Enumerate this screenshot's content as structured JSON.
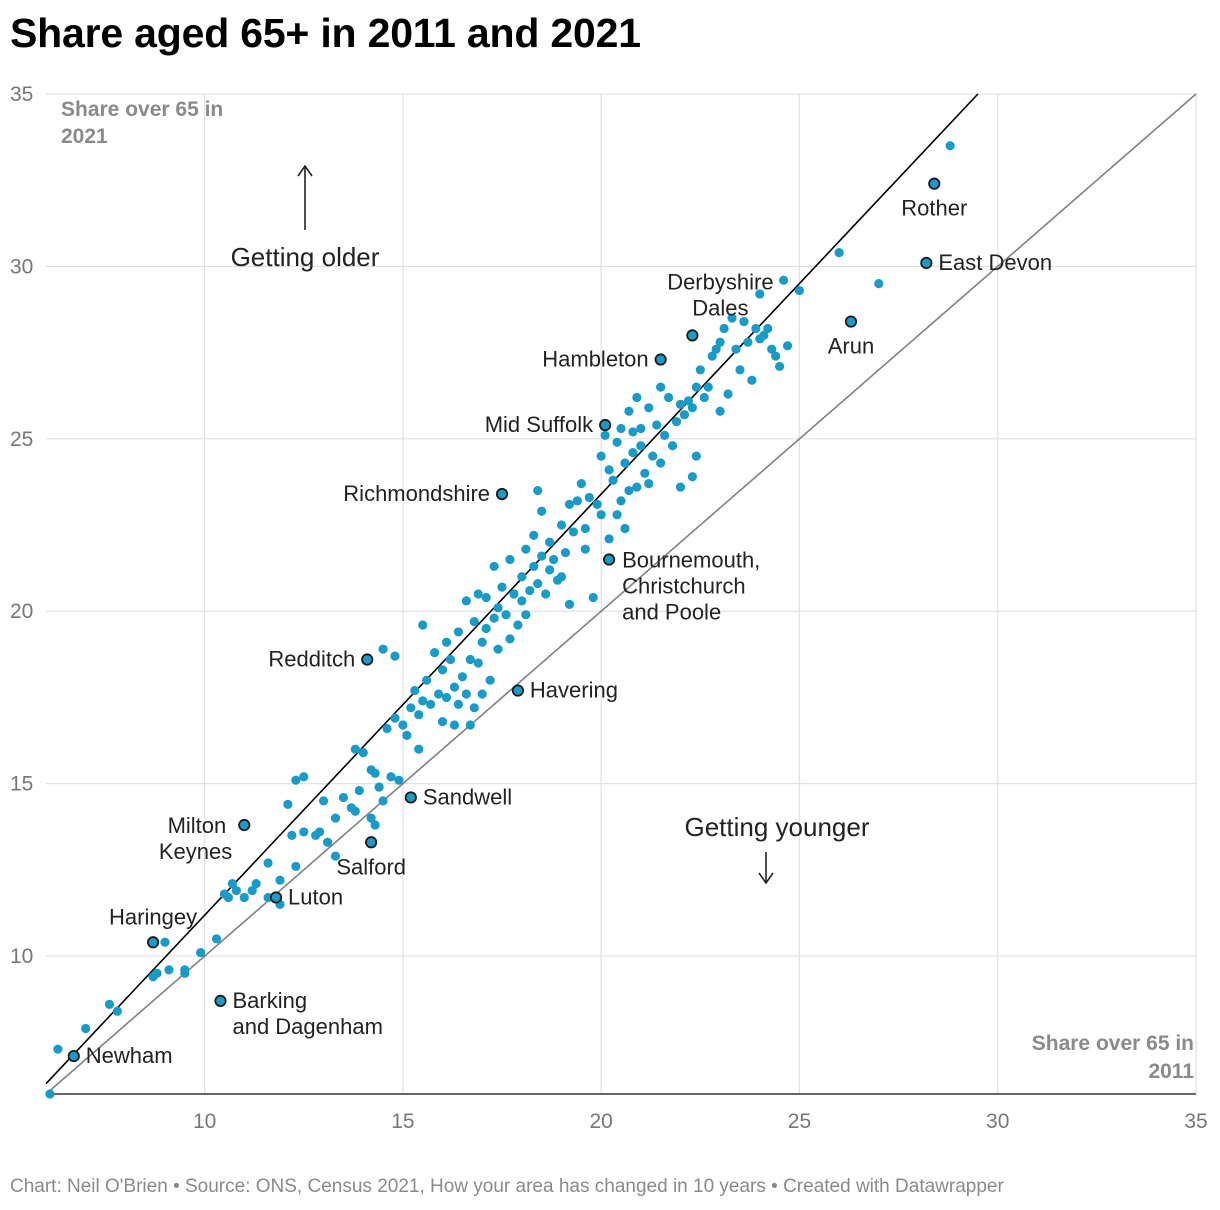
{
  "title": "Share aged 65+ in 2011 and 2021",
  "footer": "Chart: Neil O'Brien • Source: ONS, Census 2021, How your area has changed in 10 years • Created with Datawrapper",
  "colors": {
    "dot": "#1a9bc7",
    "highlight_dot": "#1a9bc7",
    "trend_line": "#000000",
    "equality_line": "#808080",
    "grid": "#e1e1e1"
  },
  "chart_data": {
    "type": "scatter",
    "title": "Share aged 65+ in 2011 and 2021",
    "xlabel": "Share over 65 in 2011",
    "ylabel": "Share over 65 in 2021",
    "xlim": [
      6,
      35
    ],
    "ylim": [
      6,
      35
    ],
    "x_ticks": [
      10,
      15,
      20,
      25,
      30,
      35
    ],
    "y_ticks": [
      35,
      30,
      25,
      20,
      15,
      10
    ],
    "grid": true,
    "annotations": {
      "older": "Getting older",
      "younger": "Getting younger"
    },
    "trend_line": {
      "from": [
        6,
        6.3
      ],
      "to": [
        29.5,
        35
      ]
    },
    "equality_line": {
      "from": [
        6,
        6
      ],
      "to": [
        35,
        35
      ]
    },
    "labeled_points": [
      {
        "name": "Rother",
        "lines": [
          "Rother"
        ],
        "x": 28.4,
        "y": 32.4
      },
      {
        "name": "East Devon",
        "lines": [
          "East Devon"
        ],
        "x": 28.2,
        "y": 30.1
      },
      {
        "name": "Derbyshire Dales",
        "lines": [
          "Derbyshire",
          "Dales"
        ],
        "x": 22.3,
        "y": 28.0
      },
      {
        "name": "Arun",
        "lines": [
          "Arun"
        ],
        "x": 26.3,
        "y": 28.4
      },
      {
        "name": "Hambleton",
        "lines": [
          "Hambleton"
        ],
        "x": 21.5,
        "y": 27.3
      },
      {
        "name": "Mid Suffolk",
        "lines": [
          "Mid Suffolk"
        ],
        "x": 20.1,
        "y": 25.4
      },
      {
        "name": "Richmondshire",
        "lines": [
          "Richmondshire"
        ],
        "x": 17.5,
        "y": 23.4
      },
      {
        "name": "Bournemouth, Christchurch and Poole",
        "lines": [
          "Bournemouth,",
          "Christchurch",
          "and Poole"
        ],
        "x": 20.2,
        "y": 21.5
      },
      {
        "name": "Redditch",
        "lines": [
          "Redditch"
        ],
        "x": 14.1,
        "y": 18.6
      },
      {
        "name": "Havering",
        "lines": [
          "Havering"
        ],
        "x": 17.9,
        "y": 17.7
      },
      {
        "name": "Sandwell",
        "lines": [
          "Sandwell"
        ],
        "x": 15.2,
        "y": 14.6
      },
      {
        "name": "Milton Keynes",
        "lines": [
          "Milton",
          "Keynes"
        ],
        "x": 11.0,
        "y": 13.8
      },
      {
        "name": "Salford",
        "lines": [
          "Salford"
        ],
        "x": 14.2,
        "y": 13.3
      },
      {
        "name": "Luton",
        "lines": [
          "Luton"
        ],
        "x": 11.8,
        "y": 11.7
      },
      {
        "name": "Haringey",
        "lines": [
          "Haringey"
        ],
        "x": 8.7,
        "y": 10.4
      },
      {
        "name": "Barking and Dagenham",
        "lines": [
          "Barking",
          "and Dagenham"
        ],
        "x": 10.4,
        "y": 8.7
      },
      {
        "name": "Newham",
        "lines": [
          "Newham"
        ],
        "x": 6.7,
        "y": 7.1
      }
    ],
    "points": [
      [
        6.1,
        6.0
      ],
      [
        6.3,
        7.3
      ],
      [
        7.0,
        7.9
      ],
      [
        7.6,
        8.6
      ],
      [
        7.8,
        8.4
      ],
      [
        8.7,
        9.4
      ],
      [
        8.8,
        9.5
      ],
      [
        9.0,
        10.4
      ],
      [
        9.1,
        9.6
      ],
      [
        9.5,
        9.6
      ],
      [
        9.5,
        9.5
      ],
      [
        9.9,
        10.1
      ],
      [
        10.3,
        10.5
      ],
      [
        10.5,
        11.8
      ],
      [
        10.6,
        11.7
      ],
      [
        10.7,
        12.1
      ],
      [
        10.8,
        11.9
      ],
      [
        11.0,
        11.7
      ],
      [
        11.2,
        11.9
      ],
      [
        11.3,
        12.1
      ],
      [
        11.6,
        12.7
      ],
      [
        11.6,
        11.7
      ],
      [
        11.9,
        12.2
      ],
      [
        11.9,
        11.5
      ],
      [
        12.1,
        14.4
      ],
      [
        12.2,
        13.5
      ],
      [
        12.3,
        12.6
      ],
      [
        12.3,
        15.1
      ],
      [
        12.5,
        15.2
      ],
      [
        12.5,
        13.6
      ],
      [
        12.8,
        13.5
      ],
      [
        12.9,
        13.6
      ],
      [
        13.0,
        14.5
      ],
      [
        13.1,
        13.3
      ],
      [
        13.3,
        12.9
      ],
      [
        13.3,
        14.0
      ],
      [
        13.5,
        14.6
      ],
      [
        13.7,
        14.3
      ],
      [
        13.8,
        14.2
      ],
      [
        13.8,
        16.0
      ],
      [
        13.9,
        14.8
      ],
      [
        14.0,
        15.9
      ],
      [
        14.2,
        14.0
      ],
      [
        14.2,
        15.4
      ],
      [
        14.3,
        13.8
      ],
      [
        14.3,
        15.3
      ],
      [
        14.4,
        14.9
      ],
      [
        14.5,
        14.5
      ],
      [
        14.5,
        18.9
      ],
      [
        14.6,
        16.6
      ],
      [
        14.7,
        15.2
      ],
      [
        14.8,
        18.7
      ],
      [
        14.8,
        16.9
      ],
      [
        14.9,
        15.1
      ],
      [
        15.0,
        16.7
      ],
      [
        15.1,
        16.4
      ],
      [
        15.2,
        17.2
      ],
      [
        15.3,
        17.7
      ],
      [
        15.4,
        16.0
      ],
      [
        15.4,
        17.0
      ],
      [
        15.5,
        19.6
      ],
      [
        15.5,
        17.4
      ],
      [
        15.6,
        18.0
      ],
      [
        15.7,
        17.3
      ],
      [
        15.8,
        18.8
      ],
      [
        15.9,
        17.6
      ],
      [
        16.0,
        18.3
      ],
      [
        16.0,
        16.8
      ],
      [
        16.1,
        17.5
      ],
      [
        16.1,
        19.1
      ],
      [
        16.2,
        18.6
      ],
      [
        16.3,
        17.8
      ],
      [
        16.3,
        16.7
      ],
      [
        16.4,
        19.4
      ],
      [
        16.4,
        17.3
      ],
      [
        16.5,
        18.1
      ],
      [
        16.6,
        17.6
      ],
      [
        16.6,
        20.3
      ],
      [
        16.7,
        18.6
      ],
      [
        16.7,
        16.7
      ],
      [
        16.8,
        19.7
      ],
      [
        16.8,
        17.2
      ],
      [
        16.9,
        20.5
      ],
      [
        16.9,
        18.5
      ],
      [
        17.0,
        19.1
      ],
      [
        17.0,
        17.6
      ],
      [
        17.1,
        20.4
      ],
      [
        17.1,
        19.5
      ],
      [
        17.2,
        18.0
      ],
      [
        17.3,
        21.3
      ],
      [
        17.3,
        19.8
      ],
      [
        17.4,
        20.1
      ],
      [
        17.4,
        18.9
      ],
      [
        17.5,
        20.7
      ],
      [
        17.6,
        19.9
      ],
      [
        17.7,
        21.5
      ],
      [
        17.7,
        19.2
      ],
      [
        17.8,
        20.5
      ],
      [
        17.9,
        19.6
      ],
      [
        18.0,
        21.0
      ],
      [
        18.0,
        20.3
      ],
      [
        18.1,
        21.8
      ],
      [
        18.1,
        19.9
      ],
      [
        18.2,
        20.6
      ],
      [
        18.3,
        22.2
      ],
      [
        18.3,
        21.3
      ],
      [
        18.4,
        20.8
      ],
      [
        18.4,
        23.5
      ],
      [
        18.5,
        21.6
      ],
      [
        18.5,
        22.9
      ],
      [
        18.6,
        20.5
      ],
      [
        18.7,
        21.2
      ],
      [
        18.7,
        22.0
      ],
      [
        18.8,
        21.5
      ],
      [
        18.9,
        20.9
      ],
      [
        19.0,
        22.5
      ],
      [
        19.0,
        21.0
      ],
      [
        19.1,
        21.7
      ],
      [
        19.2,
        23.1
      ],
      [
        19.2,
        20.2
      ],
      [
        19.3,
        22.3
      ],
      [
        19.4,
        23.2
      ],
      [
        19.5,
        23.7
      ],
      [
        19.6,
        21.8
      ],
      [
        19.6,
        22.4
      ],
      [
        19.7,
        23.3
      ],
      [
        19.8,
        20.4
      ],
      [
        19.9,
        23.1
      ],
      [
        20.0,
        24.5
      ],
      [
        20.0,
        22.8
      ],
      [
        20.1,
        25.1
      ],
      [
        20.2,
        24.1
      ],
      [
        20.2,
        22.1
      ],
      [
        20.3,
        23.8
      ],
      [
        20.4,
        24.9
      ],
      [
        20.4,
        22.8
      ],
      [
        20.5,
        25.3
      ],
      [
        20.5,
        23.2
      ],
      [
        20.6,
        24.3
      ],
      [
        20.6,
        22.4
      ],
      [
        20.7,
        25.8
      ],
      [
        20.7,
        23.5
      ],
      [
        20.8,
        24.6
      ],
      [
        20.8,
        25.2
      ],
      [
        20.9,
        26.2
      ],
      [
        20.9,
        23.6
      ],
      [
        21.0,
        24.8
      ],
      [
        21.0,
        25.3
      ],
      [
        21.1,
        24.0
      ],
      [
        21.2,
        25.9
      ],
      [
        21.2,
        23.7
      ],
      [
        21.3,
        24.5
      ],
      [
        21.4,
        25.4
      ],
      [
        21.5,
        26.5
      ],
      [
        21.5,
        24.3
      ],
      [
        21.6,
        25.1
      ],
      [
        21.7,
        26.2
      ],
      [
        21.8,
        24.8
      ],
      [
        21.9,
        25.5
      ],
      [
        22.0,
        23.6
      ],
      [
        22.0,
        26.0
      ],
      [
        22.1,
        25.7
      ],
      [
        22.2,
        26.1
      ],
      [
        22.3,
        23.9
      ],
      [
        22.3,
        25.9
      ],
      [
        22.4,
        26.5
      ],
      [
        22.4,
        24.5
      ],
      [
        22.5,
        27.0
      ],
      [
        22.6,
        26.2
      ],
      [
        22.7,
        26.5
      ],
      [
        22.8,
        27.4
      ],
      [
        22.9,
        27.6
      ],
      [
        23.0,
        25.8
      ],
      [
        23.0,
        27.8
      ],
      [
        23.1,
        28.2
      ],
      [
        23.2,
        26.3
      ],
      [
        23.3,
        28.5
      ],
      [
        23.4,
        27.6
      ],
      [
        23.5,
        27.0
      ],
      [
        23.6,
        28.4
      ],
      [
        23.7,
        27.8
      ],
      [
        23.8,
        26.7
      ],
      [
        23.9,
        28.2
      ],
      [
        24.0,
        27.9
      ],
      [
        24.1,
        28.0
      ],
      [
        24.2,
        28.2
      ],
      [
        24.3,
        27.6
      ],
      [
        24.4,
        27.4
      ],
      [
        24.5,
        27.1
      ],
      [
        24.6,
        29.6
      ],
      [
        24.7,
        27.7
      ],
      [
        24.0,
        29.2
      ],
      [
        25.0,
        29.3
      ],
      [
        26.0,
        30.4
      ],
      [
        27.0,
        29.5
      ],
      [
        28.8,
        33.5
      ]
    ]
  }
}
